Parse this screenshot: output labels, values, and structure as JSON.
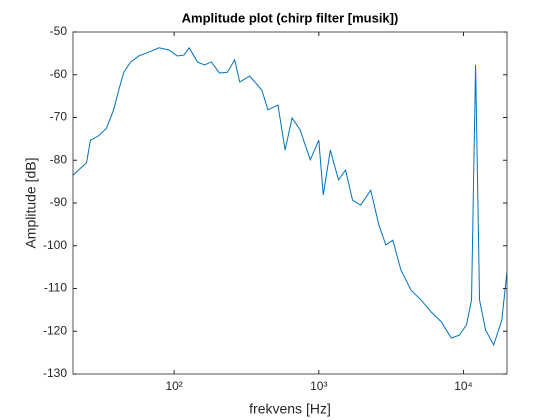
{
  "chart_data": {
    "type": "line",
    "title": "Amplitude plot (chirp filter [musik])",
    "xlabel": "frekvens [Hz]",
    "ylabel": "Amplitude [dB]",
    "xscale": "log",
    "xlim": [
      20,
      20000
    ],
    "ylim": [
      -130,
      -50
    ],
    "xticks": [
      {
        "value": 100,
        "label": "10²"
      },
      {
        "value": 1000,
        "label": "10³"
      },
      {
        "value": 10000,
        "label": "10⁴"
      }
    ],
    "yticks": [
      -130,
      -120,
      -110,
      -100,
      -90,
      -80,
      -70,
      -60,
      -50
    ],
    "series": [
      {
        "name": "amplitude",
        "color": "#0072bd",
        "x": [
          20,
          21.8,
          24.8,
          26.4,
          30,
          34.1,
          38.2,
          41.4,
          44.9,
          50.1,
          57,
          67,
          78.6,
          92,
          105,
          117,
          127,
          145,
          162,
          181,
          206,
          234,
          262,
          284,
          333,
          404,
          445,
          522,
          585,
          654,
          743,
          873,
          1000,
          1074,
          1202,
          1368,
          1531,
          1711,
          1945,
          2286,
          2600,
          2906,
          3251,
          3698,
          4345,
          5095,
          5984,
          7031,
          8248,
          9380,
          10496,
          11370,
          12130,
          12920,
          14220,
          16180,
          18410,
          20000
        ],
        "values": [
          -83.5,
          -82.3,
          -80.6,
          -75.3,
          -74.3,
          -72.5,
          -68.2,
          -63.6,
          -59.4,
          -57,
          -55.6,
          -54.7,
          -53.7,
          -54.2,
          -55.6,
          -55.4,
          -53.7,
          -57,
          -57.7,
          -57,
          -59.6,
          -59.4,
          -56.5,
          -61.7,
          -60.3,
          -63.6,
          -68.2,
          -67.1,
          -77.6,
          -70.1,
          -72.9,
          -79.9,
          -75.3,
          -88.1,
          -77.6,
          -84.6,
          -82.3,
          -89.3,
          -90.5,
          -87,
          -95.1,
          -99.8,
          -98.7,
          -105.7,
          -110.4,
          -112.7,
          -115.5,
          -117.8,
          -121.6,
          -120.9,
          -118.5,
          -112.7,
          -57.7,
          -112.7,
          -119.7,
          -123.2,
          -117.4,
          -106
        ]
      }
    ]
  }
}
